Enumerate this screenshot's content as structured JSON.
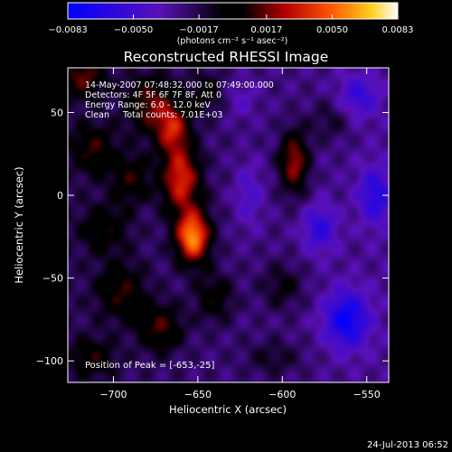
{
  "chart_data": {
    "type": "heatmap",
    "title": "Reconstructed RHESSI Image",
    "xlabel": "Heliocentric X (arcsec)",
    "ylabel": "Heliocentric Y (arcsec)",
    "xlim": [
      -727,
      -537
    ],
    "ylim": [
      -113,
      77
    ],
    "x_ticks": [
      -700,
      -650,
      -600,
      -550
    ],
    "y_ticks": [
      -100,
      -50,
      0,
      50
    ],
    "x_tick_labels": [
      "−700",
      "−650",
      "−600",
      "−550"
    ],
    "y_tick_labels": [
      "−100",
      "−50",
      "0",
      "50"
    ],
    "colorbar": {
      "range": [
        -0.0083,
        0.0083
      ],
      "ticks": [
        -0.0083,
        -0.005,
        -0.0017,
        0.0017,
        0.005,
        0.0083
      ],
      "tick_labels": [
        "−0.0083",
        "−0.0050",
        "−0.0017",
        "0.0017",
        "0.0050",
        "0.0083"
      ],
      "unit": "(photons cm⁻² s⁻¹ asec⁻²)"
    },
    "annotations": [
      "14-May-2007 07:48:32.000 to 07:49:00.000",
      "Detectors: 4F 5F 6F 7F 8F, Att 0",
      "Energy Range: 6.0 - 12.0 keV",
      "Clean     Total counts: 7.01E+03"
    ],
    "peak_label": "Position of Peak = [-653,-25]",
    "peak": [
      -653,
      -25
    ],
    "blobs": [
      {
        "x": -653,
        "y": -25,
        "sx": 7,
        "sy": 11,
        "amp": 0.0083
      },
      {
        "x": -660,
        "y": 10,
        "sx": 8,
        "sy": 14,
        "amp": 0.006
      },
      {
        "x": -665,
        "y": 40,
        "sx": 7,
        "sy": 10,
        "amp": 0.0048
      },
      {
        "x": -678,
        "y": 55,
        "sx": 10,
        "sy": 12,
        "amp": 0.0038
      },
      {
        "x": -690,
        "y": 10,
        "sx": 8,
        "sy": 10,
        "amp": 0.0028
      },
      {
        "x": -712,
        "y": 28,
        "sx": 9,
        "sy": 10,
        "amp": 0.003
      },
      {
        "x": -718,
        "y": 72,
        "sx": 9,
        "sy": 9,
        "amp": 0.0036
      },
      {
        "x": -705,
        "y": -20,
        "sx": 10,
        "sy": 10,
        "amp": 0.0024
      },
      {
        "x": -695,
        "y": -58,
        "sx": 10,
        "sy": 12,
        "amp": 0.003
      },
      {
        "x": -672,
        "y": -80,
        "sx": 9,
        "sy": 10,
        "amp": 0.0034
      },
      {
        "x": -640,
        "y": -62,
        "sx": 8,
        "sy": 10,
        "amp": 0.0026
      },
      {
        "x": -645,
        "y": 62,
        "sx": 8,
        "sy": 9,
        "amp": 0.0022
      },
      {
        "x": -712,
        "y": -98,
        "sx": 9,
        "sy": 8,
        "amp": 0.0026
      },
      {
        "x": -593,
        "y": 20,
        "sx": 6,
        "sy": 13,
        "amp": 0.0052
      },
      {
        "x": -600,
        "y": -55,
        "sx": 9,
        "sy": 10,
        "amp": 0.002
      },
      {
        "x": -572,
        "y": 45,
        "sx": 9,
        "sy": 9,
        "amp": 0.0016
      },
      {
        "x": -605,
        "y": -98,
        "sx": 12,
        "sy": 8,
        "amp": 0.0016
      },
      {
        "x": -562,
        "y": -75,
        "sx": 9,
        "sy": 12,
        "amp": -0.005
      },
      {
        "x": -578,
        "y": -20,
        "sx": 7,
        "sy": 10,
        "amp": -0.0032
      },
      {
        "x": -545,
        "y": 0,
        "sx": 7,
        "sy": 12,
        "amp": -0.0034
      },
      {
        "x": -620,
        "y": 0,
        "sx": 6,
        "sy": 14,
        "amp": -0.002
      },
      {
        "x": -555,
        "y": 60,
        "sx": 8,
        "sy": 9,
        "amp": -0.0028
      },
      {
        "x": -625,
        "y": 58,
        "sx": 7,
        "sy": 9,
        "amp": -0.0014
      }
    ]
  },
  "footer": {
    "timestamp": "24-Jul-2013 06:52"
  }
}
